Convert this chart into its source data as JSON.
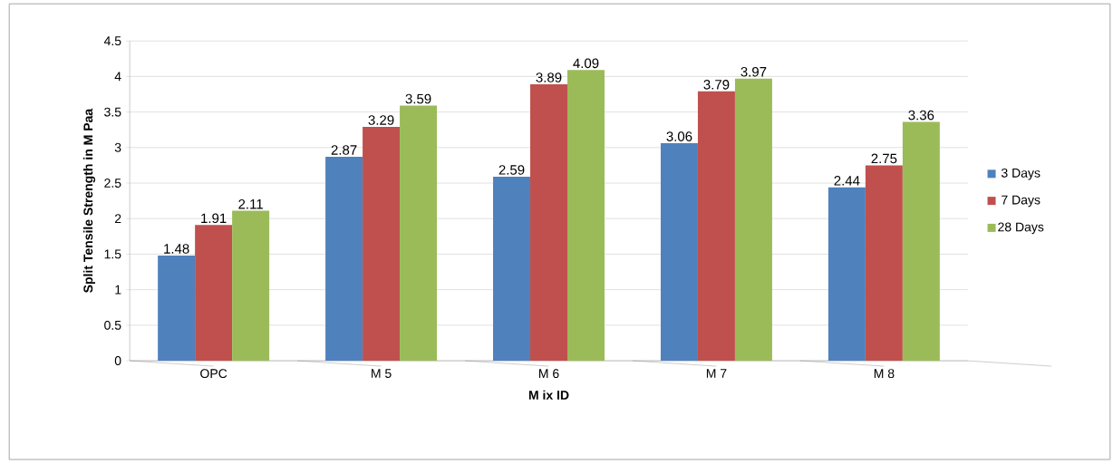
{
  "chart_data": {
    "type": "bar",
    "xlabel": "M ix ID",
    "ylabel": "Split Tensile Strength in M Paa",
    "categories": [
      "OPC",
      "M 5",
      "M 6",
      "M 7",
      "M 8"
    ],
    "series": [
      {
        "name": "3 Days",
        "color": "#4f81bd",
        "values": [
          1.48,
          2.87,
          2.59,
          3.06,
          2.44
        ]
      },
      {
        "name": "7 Days",
        "color": "#c0504d",
        "values": [
          1.91,
          3.29,
          3.89,
          3.79,
          2.75
        ]
      },
      {
        "name": "28 Days",
        "color": "#9bbb59",
        "values": [
          2.11,
          3.59,
          4.09,
          3.97,
          3.36
        ]
      }
    ],
    "ylim": [
      0,
      4.5
    ],
    "yticks": [
      0,
      0.5,
      1,
      1.5,
      2,
      2.5,
      3,
      3.5,
      4,
      4.5
    ],
    "grid": "y",
    "legend": "right",
    "data_labels": true
  }
}
